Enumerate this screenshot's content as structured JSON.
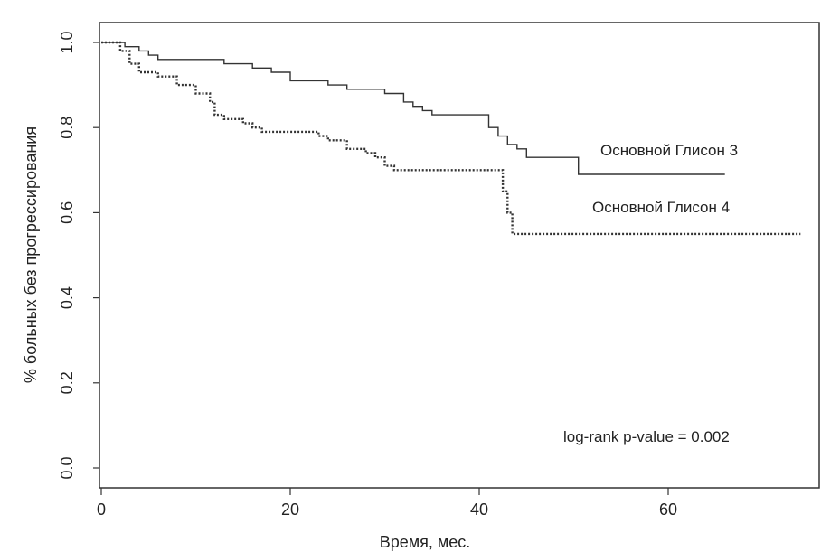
{
  "chart_data": {
    "type": "line",
    "title": "",
    "xlabel": "Время, мес.",
    "ylabel": "% больных без прогрессирования",
    "xlim": [
      0,
      75
    ],
    "ylim": [
      -0.04,
      1.06
    ],
    "x_ticks": [
      "0",
      "20",
      "40",
      "60"
    ],
    "y_ticks": [
      "0.0",
      "0.2",
      "0.4",
      "0.6",
      "0.8",
      "1.0"
    ],
    "series": [
      {
        "name": "Основной Глисон 3",
        "style": "solid",
        "points": [
          [
            0,
            1.0
          ],
          [
            2,
            1.0
          ],
          [
            2.5,
            0.99
          ],
          [
            4,
            0.98
          ],
          [
            5,
            0.97
          ],
          [
            6,
            0.96
          ],
          [
            12,
            0.96
          ],
          [
            13,
            0.95
          ],
          [
            16,
            0.94
          ],
          [
            18,
            0.93
          ],
          [
            20,
            0.91
          ],
          [
            24,
            0.9
          ],
          [
            26,
            0.89
          ],
          [
            30,
            0.88
          ],
          [
            32,
            0.86
          ],
          [
            33,
            0.85
          ],
          [
            34,
            0.84
          ],
          [
            35,
            0.83
          ],
          [
            40,
            0.83
          ],
          [
            41,
            0.8
          ],
          [
            42,
            0.78
          ],
          [
            43,
            0.76
          ],
          [
            44,
            0.75
          ],
          [
            45,
            0.73
          ],
          [
            50,
            0.73
          ],
          [
            50.5,
            0.69
          ],
          [
            66,
            0.69
          ]
        ]
      },
      {
        "name": "Основной Глисон 4",
        "style": "dotted",
        "points": [
          [
            0,
            1.0
          ],
          [
            1.5,
            1.0
          ],
          [
            2,
            0.98
          ],
          [
            3,
            0.95
          ],
          [
            4,
            0.93
          ],
          [
            6,
            0.92
          ],
          [
            8,
            0.9
          ],
          [
            10,
            0.88
          ],
          [
            11.5,
            0.86
          ],
          [
            12,
            0.83
          ],
          [
            13,
            0.82
          ],
          [
            15,
            0.81
          ],
          [
            16,
            0.8
          ],
          [
            17,
            0.79
          ],
          [
            22,
            0.79
          ],
          [
            23,
            0.78
          ],
          [
            24,
            0.77
          ],
          [
            26,
            0.75
          ],
          [
            28,
            0.74
          ],
          [
            29,
            0.73
          ],
          [
            30,
            0.71
          ],
          [
            31,
            0.7
          ],
          [
            42,
            0.7
          ],
          [
            42.5,
            0.65
          ],
          [
            43,
            0.6
          ],
          [
            43.5,
            0.55
          ],
          [
            74,
            0.55
          ]
        ]
      }
    ],
    "annotations": {
      "stat": "log-rank p-value = 0.002"
    },
    "grid": false,
    "colors": {
      "line": "#333333",
      "axis": "#333333"
    }
  }
}
